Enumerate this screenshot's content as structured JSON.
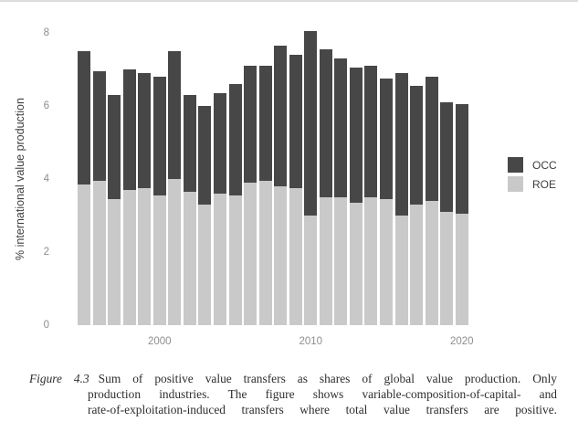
{
  "chart_data": {
    "type": "bar",
    "stacked": true,
    "title": "",
    "xlabel": "",
    "ylabel": "% international value production",
    "ylim": [
      0,
      8.4
    ],
    "grid": false,
    "legend_position": "right",
    "x": [
      1995,
      1996,
      1997,
      1998,
      1999,
      2000,
      2001,
      2002,
      2003,
      2004,
      2005,
      2006,
      2007,
      2008,
      2009,
      2010,
      2011,
      2012,
      2013,
      2014,
      2015,
      2016,
      2017,
      2018,
      2019,
      2020
    ],
    "x_tick_labels": [
      "2000",
      "2010",
      "2020"
    ],
    "y_tick_labels": [
      "0",
      "2",
      "4",
      "6",
      "8"
    ],
    "series": [
      {
        "name": "ROE",
        "color": "#c9c9c9",
        "values": [
          3.85,
          3.95,
          3.45,
          3.7,
          3.75,
          3.55,
          4.0,
          3.65,
          3.3,
          3.6,
          3.55,
          3.9,
          3.95,
          3.8,
          3.75,
          3.0,
          3.5,
          3.5,
          3.35,
          3.5,
          3.45,
          3.0,
          3.3,
          3.4,
          3.1,
          3.05
        ]
      },
      {
        "name": "OCC",
        "color": "#474747",
        "values": [
          3.65,
          3.0,
          2.85,
          3.3,
          3.15,
          3.25,
          3.5,
          2.65,
          2.7,
          2.75,
          3.05,
          3.2,
          3.15,
          3.85,
          3.65,
          5.05,
          4.05,
          3.8,
          3.7,
          3.6,
          3.3,
          3.9,
          3.25,
          3.4,
          3.0,
          3.0
        ]
      }
    ]
  },
  "legend": {
    "items": [
      {
        "label": "OCC",
        "color": "#474747"
      },
      {
        "label": "ROE",
        "color": "#c9c9c9"
      }
    ]
  },
  "caption": {
    "label": "Figure 4.3",
    "lines": [
      "Sum of positive value transfers as shares of global value production. Only",
      "production industries. The figure shows variable-composition-of-capital- and",
      "rate-of-exploitation-induced transfers where total value transfers are positive."
    ]
  }
}
